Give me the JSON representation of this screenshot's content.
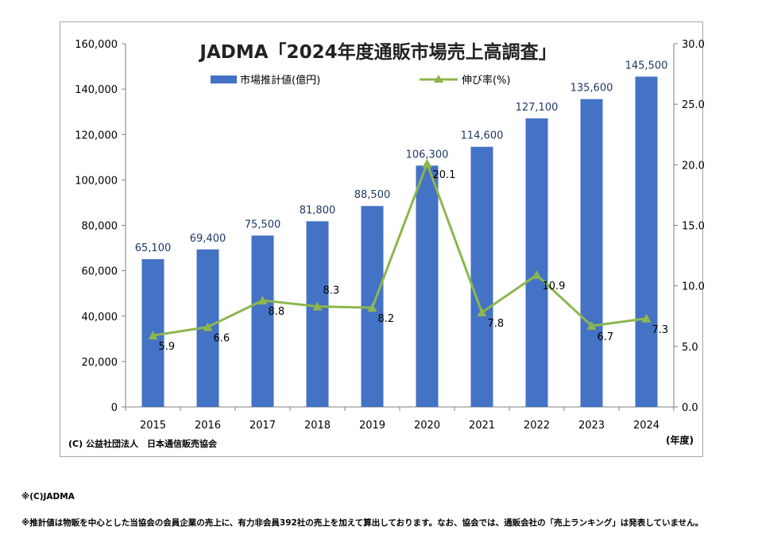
{
  "chart_data": {
    "type": "bar+line",
    "title": "JADMA「2024年度通販市場売上高調査」",
    "categories": [
      "2015",
      "2016",
      "2017",
      "2018",
      "2019",
      "2020",
      "2021",
      "2022",
      "2023",
      "2024"
    ],
    "series": [
      {
        "name": "市場推計値(億円)",
        "type": "bar",
        "axis": "left",
        "color": "#4472c4",
        "values": [
          65100,
          69400,
          75500,
          81800,
          88500,
          106300,
          114600,
          127100,
          135600,
          145500
        ],
        "labels": [
          "65,100",
          "69,400",
          "75,500",
          "81,800",
          "88,500",
          "106,300",
          "114,600",
          "127,100",
          "135,600",
          "145,500"
        ]
      },
      {
        "name": "伸び率(%)",
        "type": "line",
        "axis": "right",
        "color": "#8db64e",
        "values": [
          5.9,
          6.6,
          8.8,
          8.3,
          8.2,
          20.1,
          7.8,
          10.9,
          6.7,
          7.3
        ],
        "labels": [
          "5.9",
          "6.6",
          "8.8",
          "8.3",
          "8.2",
          "20.1",
          "7.8",
          "10.9",
          "6.7",
          "7.3"
        ]
      }
    ],
    "y_left": {
      "range": [
        0,
        160000
      ],
      "ticks": [
        0,
        20000,
        40000,
        60000,
        80000,
        100000,
        120000,
        140000,
        160000
      ],
      "tick_labels": [
        "0",
        "20,000",
        "40,000",
        "60,000",
        "80,000",
        "100,000",
        "120,000",
        "140,000",
        "160,000"
      ]
    },
    "y_right": {
      "range": [
        0,
        30
      ],
      "ticks": [
        0,
        5,
        10,
        15,
        20,
        25,
        30
      ],
      "tick_labels": [
        "0.0",
        "5.0",
        "10.0",
        "15.0",
        "20.0",
        "25.0",
        "30.0"
      ]
    },
    "x_unit_label": "(年度)",
    "source": "(C) 公益社団法人　日本通信販売協会",
    "legend_position": "top",
    "grid": false
  },
  "notes": {
    "copyright": "※(C)JADMA",
    "method": "※推計値は物販を中心とした当協会の会員企業の売上に、有力非会員392社の売上を加えて算出しております。なお、協会では、通販会社の「売上ランキング」は発表していません。"
  }
}
